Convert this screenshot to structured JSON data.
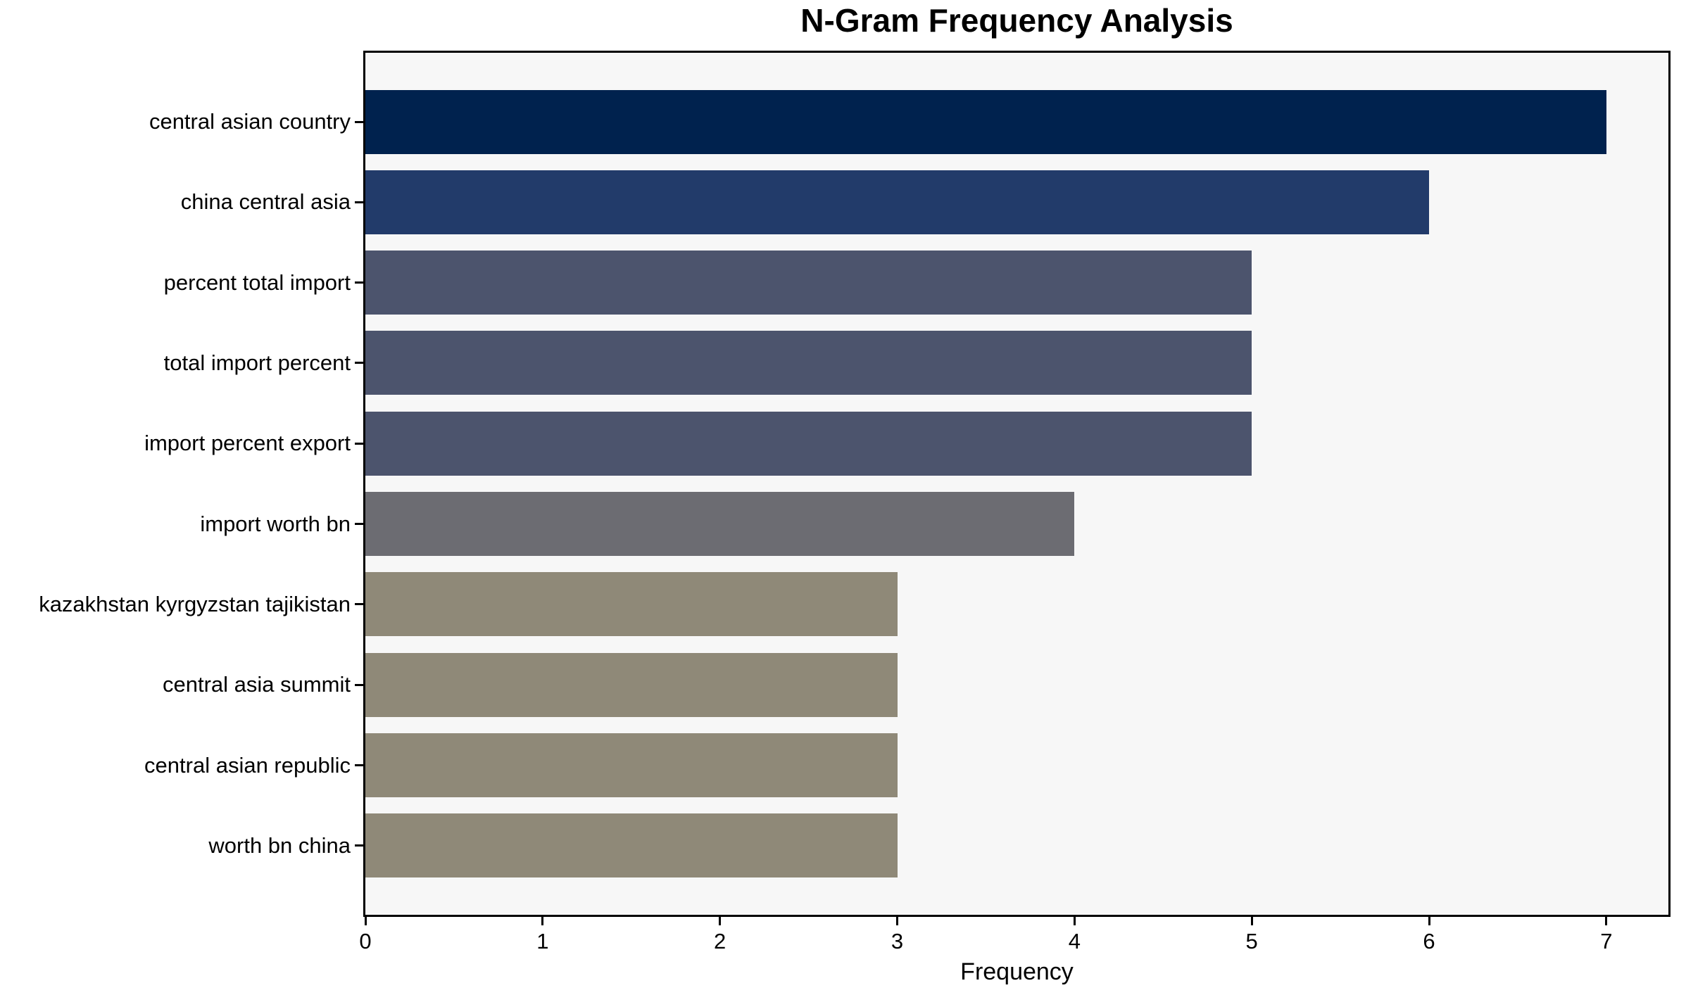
{
  "figure": {
    "title": "N-Gram Frequency Analysis"
  },
  "chart_data": {
    "type": "bar",
    "orientation": "horizontal",
    "title": "N-Gram Frequency Analysis",
    "xlabel": "Frequency",
    "ylabel": "",
    "categories": [
      "central asian country",
      "china central asia",
      "percent total import",
      "total import percent",
      "import percent export",
      "import worth bn",
      "kazakhstan kyrgyzstan tajikistan",
      "central asia summit",
      "central asian republic",
      "worth bn china"
    ],
    "values": [
      7,
      6,
      5,
      5,
      5,
      4,
      3,
      3,
      3,
      3
    ],
    "bar_colors": [
      "#00224e",
      "#223b6a",
      "#4c546d",
      "#4c546d",
      "#4c546d",
      "#6c6c72",
      "#8f8978",
      "#8f8978",
      "#8f8978",
      "#8f8978"
    ],
    "xlim": [
      0,
      7.35
    ],
    "xticks": [
      "0",
      "1",
      "2",
      "3",
      "4",
      "5",
      "6",
      "7"
    ],
    "grid": false,
    "legend": false,
    "plot_background": "#f7f7f7",
    "axis_color": "#000000"
  }
}
